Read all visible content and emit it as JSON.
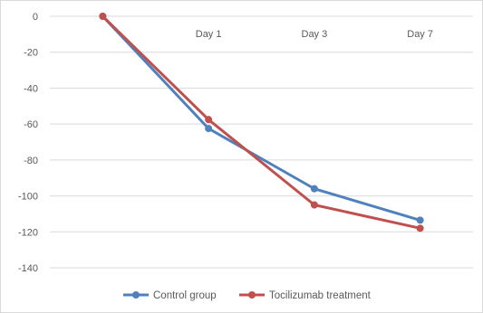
{
  "chart_data": {
    "type": "line",
    "title": "",
    "xlabel": "",
    "ylabel": "",
    "categories": [
      "",
      "Day 1",
      "Day 3",
      "Day 7"
    ],
    "ylim": [
      -140,
      0
    ],
    "yticks": [
      0,
      -20,
      -40,
      -60,
      -80,
      -100,
      -120,
      -140
    ],
    "x_tick_position": "top",
    "grid": true,
    "legend_position": "bottom",
    "series": [
      {
        "name": "Control group",
        "color": "#4F81BD",
        "values": [
          0,
          -62.5,
          -96,
          -113.5
        ]
      },
      {
        "name": "Tocilizumab treatment",
        "color": "#C0504D",
        "values": [
          0,
          -57.5,
          -105,
          -118
        ]
      }
    ],
    "grid_color": "#d9d9d9",
    "text_color": "#595959"
  }
}
